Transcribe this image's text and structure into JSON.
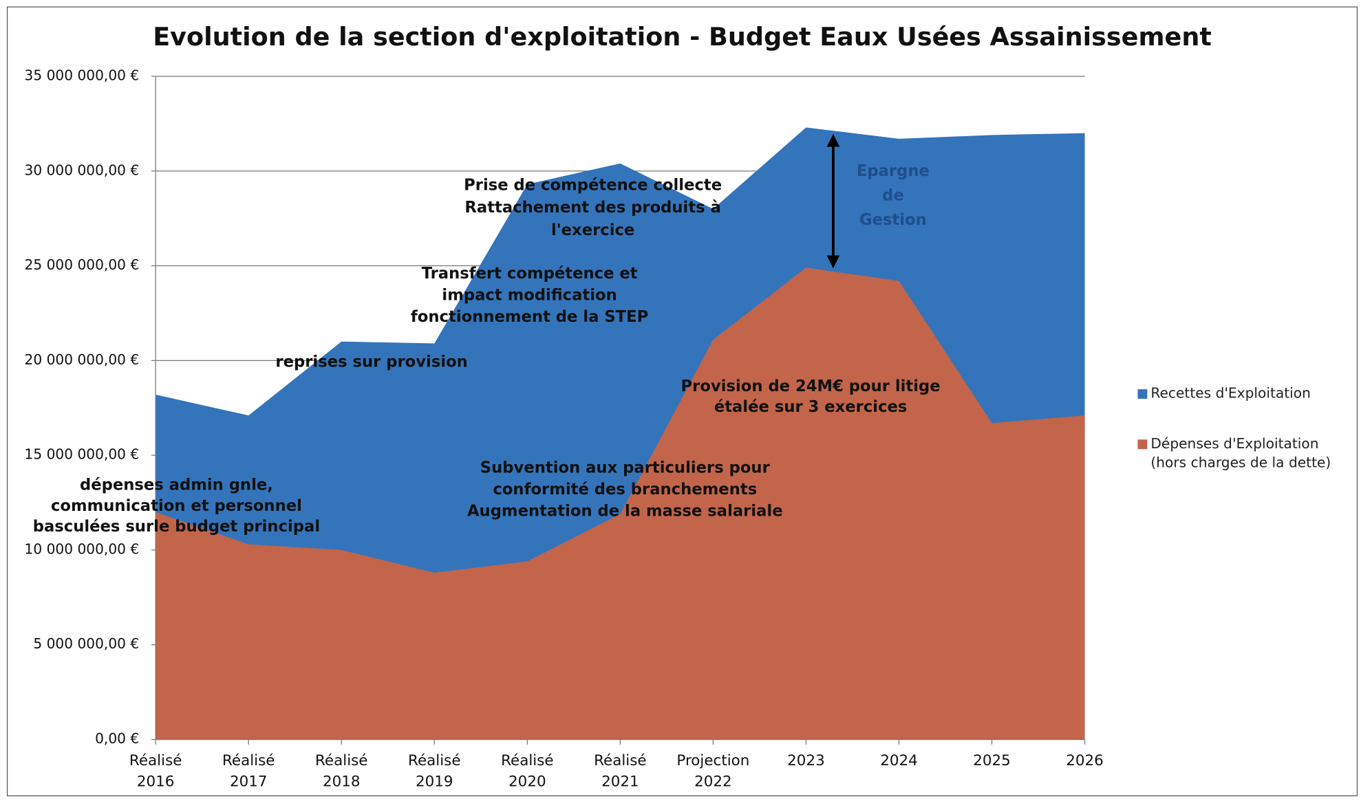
{
  "chart_data": {
    "type": "area",
    "title": "Evolution de la section d'exploitation - Budget Eaux Usées Assainissement",
    "categories": [
      [
        "Réalisé",
        "2016"
      ],
      [
        "Réalisé",
        "2017"
      ],
      [
        "Réalisé",
        "2018"
      ],
      [
        "Réalisé",
        "2019"
      ],
      [
        "Réalisé",
        "2020"
      ],
      [
        "Réalisé",
        "2021"
      ],
      [
        "Projection",
        "2022"
      ],
      [
        "2023"
      ],
      [
        "2024"
      ],
      [
        "2025"
      ],
      [
        "2026"
      ]
    ],
    "series": [
      {
        "name": "Recettes d'Exploitation",
        "color": "#3474bb",
        "values": [
          18200000,
          17100000,
          21000000,
          20900000,
          29300000,
          30400000,
          28000000,
          32300000,
          31700000,
          31900000,
          32000000
        ]
      },
      {
        "name": "Dépenses d'Exploitation (hors charges de la dette)",
        "color": "#c2654a",
        "values": [
          12000000,
          10300000,
          10000000,
          8800000,
          9400000,
          11900000,
          21100000,
          24900000,
          24200000,
          16700000,
          17100000
        ]
      }
    ],
    "ylim": [
      0,
      35000000
    ],
    "yticks": [
      {
        "value": 0,
        "label": "0,00 €"
      },
      {
        "value": 5000000,
        "label": "5 000 000,00 €"
      },
      {
        "value": 10000000,
        "label": "10 000 000,00 €"
      },
      {
        "value": 15000000,
        "label": "15 000 000,00 €"
      },
      {
        "value": 20000000,
        "label": "20 000 000,00 €"
      },
      {
        "value": 25000000,
        "label": "25 000 000,00 €"
      },
      {
        "value": 30000000,
        "label": "30 000 000,00 €"
      },
      {
        "value": 35000000,
        "label": "35 000 000,00 €"
      }
    ],
    "grid": true,
    "legend": "right",
    "annotations": [
      [
        "dépenses admin gnle,",
        "communication et personnel",
        "basculées surle budget principal"
      ],
      [
        "reprises sur provision"
      ],
      [
        "Transfert compétence et",
        "impact modification",
        "fonctionnement de la STEP"
      ],
      [
        "Prise de compétence collecte",
        "Rattachement des produits à",
        "l'exercice"
      ],
      [
        "Subvention aux particuliers pour",
        "conformité des branchements",
        "Augmentation de la masse salariale"
      ],
      [
        "Provision de 24M€ pour litige",
        "étalée sur 3 exercices"
      ],
      [
        "Epargne",
        "de",
        "Gestion"
      ]
    ]
  }
}
